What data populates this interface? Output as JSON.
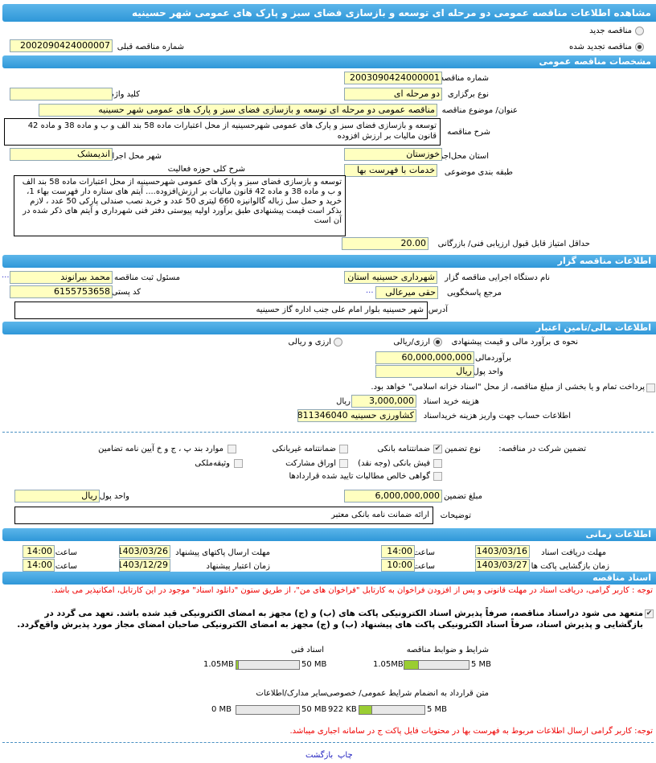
{
  "title": "مشاهده اطلاعات مناقصه عمومی دو مرحله ای توسعه و بازسازی فضای سبز و پارک های عمومی شهر حسینیه",
  "tender_type": {
    "new_label": "مناقصه جدید",
    "renewed_label": "مناقصه تجدید شده",
    "selected": "renewed",
    "prev_number_label": "شماره مناقصه قبلی",
    "prev_number": "2002090424000007"
  },
  "general": {
    "header": "مشخصات مناقصه عمومی",
    "number_label": "شماره مناقصه",
    "number": "2003090424000001",
    "type_label": "نوع برگزاری",
    "type": "دو مرحله ای",
    "keyword_label": "کلید واژه",
    "keyword": "",
    "subject_label": "عنوان/ موضوع مناقصه",
    "subject": "مناقصه عمومی دو مرحله ای توسعه و بازسازی فضای سبز و پارک های عمومی شهر حسینیه",
    "desc_label": "شرح مناقصه",
    "desc": "توسعه و بازسازی فضای سبز و پارک های عمومی  شهرحسینیه از محل اعتبارات ماده 58 بند الف و ب و ماده 38 و ماده 42 قانون مالیات بر ارزش افزوده",
    "province_label": "استان محل‌اجرا",
    "province": "خوزستان",
    "city_label": "شهر محل اجرا",
    "city": "اندیمشک",
    "category_label": "طبقه بندی موضوعی",
    "category": "خدمات با فهرست بها",
    "activity_label": "شرح کلی حوزه فعالیت",
    "activity": "توسعه و بازسازی فضای سبز و پارک های عمومی  شهرحسینیه از محل اعتبارات ماده 58 بند الف و ب و ماده 38 و ماده 42 قانون مالیات بر ارزش‌افزوده.... آیتم های ستاره دار فهرست بهاء 1، خرید و حمل سل زباله گالوانیزه 660 لیتری 50 عدد و خرید نصب صندلی پارکی 50 عدد ، لازم بذکر است قیمت پیشنهادی طبق برآورد اولیه پیوستی دفتر فنی شهرداری و آیتم های ذکر شده در آن است",
    "min_score_label": "حداقل امتیاز قابل قبول ارزیابی فنی/ بازرگانی",
    "min_score": "20.00"
  },
  "organizer": {
    "header": "اطلاعات مناقصه گزار",
    "org_label": "نام دستگاه اجرایی مناقصه گزار",
    "org": "شهرداری حسینیه استان خ",
    "registrar_label": "مسئول ثبت مناقصه",
    "registrar": "محمد بیرانوند",
    "more": "...",
    "ref_label": "مرجع پاسخگویی",
    "ref": "حقی میرعالی",
    "postal_label": "کد پستی",
    "postal": "6155753658",
    "address_label": "آدرس",
    "address": "شهر  حسینیه بلوار امام علی جنب اداره گاز  حسینیه"
  },
  "finance": {
    "header": "اطلاعات مالی/تامین اعتبار",
    "method_label": "نحوه ی برآورد مالی و قیمت  پیشنهادی",
    "opt1": "ارزی/ریالی",
    "opt2": "ارزی و ریالی",
    "selected": "opt1",
    "estimate_label": "برآوردمالی",
    "estimate": "60,000,000,000",
    "currency_label": "واحد پول",
    "currency": "ریال",
    "treasury_label": "پرداخت تمام و یا بخشی از مبلغ  مناقصه، از محل \"اسناد خزانه اسلامی\" خواهد بود.",
    "treasury_checked": false,
    "doc_fee_label": "هزینه خرید اسناد",
    "doc_fee": "3,000,000",
    "doc_fee_unit": "ریال",
    "account_label": "اطلاعات حساب جهت واریز هزینه خریداسناد",
    "account": "کشاورزی حسینیه 811346040",
    "guarantee_label": "تضمین شرکت در مناقصه:",
    "guarantee_type_label": "نوع تضمین",
    "guarantee_options": [
      {
        "label": "ضمانتنامه بانکی",
        "checked": true
      },
      {
        "label": "ضمانتنامه غیربانکی",
        "checked": false
      },
      {
        "label": "موارد بند پ ، ج و خ آیین نامه تضامین",
        "checked": false
      },
      {
        "label": "فیش بانکی (وجه نقد)",
        "checked": false
      },
      {
        "label": "اوراق مشارکت",
        "checked": false
      },
      {
        "label": "وثیقه‌ملکی",
        "checked": false
      },
      {
        "label": "گواهی خالص مطالبات تایید شده قراردادها",
        "checked": false
      }
    ],
    "guarantee_amount_label": "مبلغ  تضمین",
    "guarantee_amount": "6,000,000,000",
    "guarantee_currency_label": "واحد پول",
    "guarantee_currency": "ریال",
    "notes_label": "توضیحات",
    "notes": "ارائه  ضمانت نامه بانکی معتبر"
  },
  "timing": {
    "header": "اطلاعات زمانی",
    "time_label": "ساعت",
    "doc_receive_label": "مهلت  دریافت اسناد",
    "doc_receive_date": "1403/03/16",
    "doc_receive_time": "14:00",
    "submit_label": "مهلت ارسال  پاکتهای  پیشنهاد",
    "submit_date": "1403/03/26",
    "submit_time": "14:00",
    "open_label": "زمان  بازگشایی پاکت ها",
    "open_date": "1403/03/27",
    "open_time": "10:00",
    "validity_label": "زمان  اعتبار  پیشنهاد",
    "validity_date": "1403/12/29",
    "validity_time": "14:00"
  },
  "documents": {
    "header": "اسناد مناقصه",
    "note": "توجه : کاربر گرامی، دریافت اسناد در مهلت قانونی و پس از افزودن فراخوان به کارتابل \"فراخوان های من\"، از طریق ستون \"دانلود اسناد\" موجود در این کارتابل، امکانپذیر می باشد.",
    "commitment": "متعهد می شود دراسناد مناقصه، صرفاً پذیرش اسناد الکترونیکی پاکت های (ب) و (ج) مجهز به امضای الکترونیکی قید شده باشد. تعهد می گردد در بازگشایی و پذیرش اسناد، صرفاً اسناد الکترونیکی پاکت های پیشنهاد (ب) و (ج) مجهز به امضای الکترونیکی صاحبان امضای مجاز مورد پذیرش واقع‌گردد.",
    "commitment_checked": true,
    "files": [
      {
        "label": "شرایط و ضوابط مناقصه",
        "size": "1.05MB",
        "max": "5 MB",
        "fraction": 0.21
      },
      {
        "label": "اسناد فنی",
        "size": "1.05MB",
        "max": "50 MB",
        "fraction": 0.021
      },
      {
        "label": "متن قرارداد به  انضمام شرایط عمومی/ خصوصی",
        "size": "922 KB",
        "max": "5 MB",
        "fraction": 0.18
      },
      {
        "label": "سایر مدارک/اطلاعات",
        "size": "0 MB",
        "max": "50 MB",
        "fraction": 0
      }
    ],
    "note2": "توجه: کاربر گرامی ارسال اطلاعات مربوط به فهرست بها در محتویات فایل پاکت ج در سامانه  اجباری میباشد."
  },
  "footer": {
    "print": "چاپ",
    "back": "بازگشت"
  },
  "colors": {
    "header": "#3fa3e0",
    "field": "#ffffc0",
    "note": "#e00000",
    "progress": "#9acd32",
    "link": "#2020c0"
  }
}
